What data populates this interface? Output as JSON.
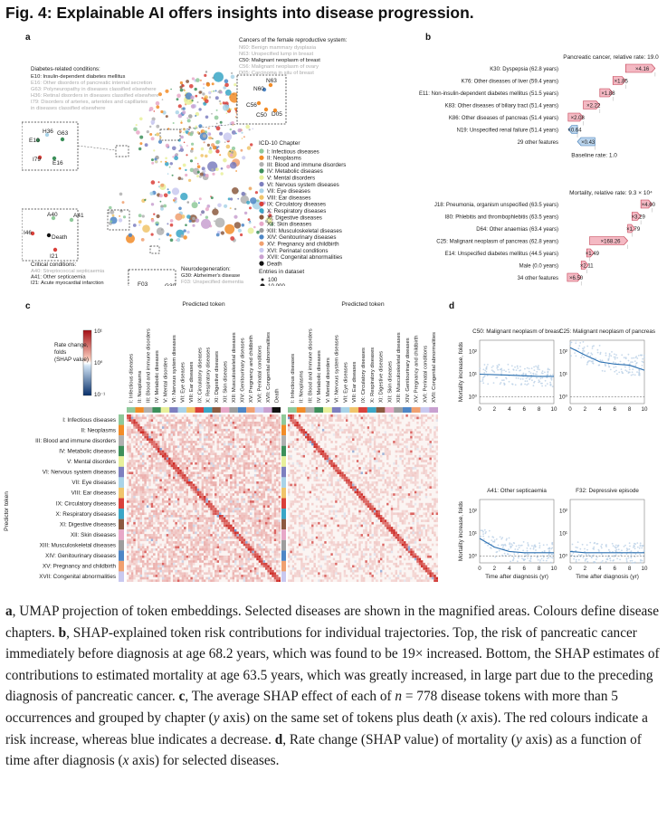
{
  "figure_title": "Fig. 4: Explainable AI offers insights into disease progression.",
  "panel_labels": {
    "a": "a",
    "b": "b",
    "c": "c",
    "d": "d"
  },
  "panel_a": {
    "cancers_box": {
      "heading": "Cancers of the female reproductive system:",
      "lines": [
        {
          "text": "N60: Benign mammary dysplasia",
          "faded": true
        },
        {
          "text": "N63: Unspecified lump in breast",
          "faded": true
        },
        {
          "text": "C50: Malignant neoplasm of breast",
          "faded": false
        },
        {
          "text": "C56: Malignant neoplasm of ovary",
          "faded": true
        },
        {
          "text": "D05: Carcinoma in situ of breast",
          "faded": true
        }
      ],
      "points": [
        "N63",
        "N60",
        "C56",
        "C50",
        "D05"
      ]
    },
    "diabetes_box": {
      "heading": "Diabetes-related conditions:",
      "lines": [
        {
          "text": "E10: Insulin-dependent diabetes mellitus",
          "faded": false
        },
        {
          "text": "E16: Other disorders of pancreatic internal secretion",
          "faded": true
        },
        {
          "text": "G63: Polyneuropathy in diseases classified elsewhere",
          "faded": true
        },
        {
          "text": "H36: Retinal disorders in diseases classified elsewhere",
          "faded": true
        },
        {
          "text": "I79: Disorders of arteries, arterioles and capillaries",
          "faded": true
        },
        {
          "text": "     in diseases classified elsewhere",
          "faded": true
        }
      ],
      "points": [
        "H36",
        "G63",
        "E10",
        "I79",
        "E16"
      ]
    },
    "critical_box": {
      "heading": "Critical conditions:",
      "lines": [
        {
          "text": "A40: Streptococcal septicaemia",
          "faded": true
        },
        {
          "text": "A41: Other septicaemia",
          "faded": false
        },
        {
          "text": "I21: Acute myocardial infarction",
          "faded": false
        },
        {
          "text": "I46: Cardiac arrest",
          "faded": true
        },
        {
          "text": "Death",
          "faded": false
        }
      ],
      "points": [
        "A40",
        "A41",
        "I46",
        "Death",
        "I21"
      ]
    },
    "neuro_box": {
      "heading": "Neurodegeneration:",
      "lines": [
        {
          "text": "G30: Alzheimer's disease",
          "faded": false
        },
        {
          "text": "F03: Unspecified dementia",
          "faded": true
        },
        {
          "text": "G20: Parkinson's disease",
          "faded": true
        },
        {
          "text": "F00: Dementia in Alzheimer's",
          "faded": true
        },
        {
          "text": "disease",
          "faded": true
        }
      ],
      "points": [
        "F03",
        "G30",
        "F00",
        "G20"
      ]
    },
    "legend_title": "ICD-10 Chapter",
    "chapters": [
      {
        "label": "I: Infectious diseases",
        "color": "#8fc99a"
      },
      {
        "label": "II: Neoplasms",
        "color": "#f28c28"
      },
      {
        "label": "III: Blood and immune disorders",
        "color": "#b0b0b0"
      },
      {
        "label": "IV: Metabolic diseases",
        "color": "#3d8f5a"
      },
      {
        "label": "V: Mental disorders",
        "color": "#e8f09a"
      },
      {
        "label": "VI: Nervous system diseases",
        "color": "#7d7fbf"
      },
      {
        "label": "VII: Eye diseases",
        "color": "#a9d3e8"
      },
      {
        "label": "VIII: Ear diseases",
        "color": "#f0c46a"
      },
      {
        "label": "IX: Circulatory diseases",
        "color": "#d9403a"
      },
      {
        "label": "X: Respiratory diseases",
        "color": "#3aa6c6"
      },
      {
        "label": "XI: Digestive diseases",
        "color": "#8c5a40"
      },
      {
        "label": "XII: Skin diseases",
        "color": "#e7a8c8"
      },
      {
        "label": "XIII: Musculoskeletal diseases",
        "color": "#9d9d9d"
      },
      {
        "label": "XIV: Genitourinary diseases",
        "color": "#4e86c6"
      },
      {
        "label": "XV: Pregnancy and childbirth",
        "color": "#f0a070"
      },
      {
        "label": "XVI: Perinatal conditions",
        "color": "#c9c9f0"
      },
      {
        "label": "XVII: Congenital abnormalities",
        "color": "#c8a0d0"
      },
      {
        "label": "Death",
        "color": "#111111"
      }
    ],
    "size_legend": {
      "title": "Entries in dataset",
      "entries": [
        "100",
        "10,000",
        "100,000"
      ]
    }
  },
  "panel_b": {
    "top": {
      "title": "Pancreatic cancer, relative rate: 19.0",
      "baseline": "Baseline rate: 1.0",
      "bars": [
        {
          "label": "K30: Dyspepsia (62.8 years)",
          "value": "×4.16",
          "fold": 4.16
        },
        {
          "label": "K76: Other diseases of liver (59.4 years)",
          "value": "×1.85",
          "fold": 1.85
        },
        {
          "label": "E11: Non-insulin-dependent diabetes mellitus (51.5 years)",
          "value": "×1.88",
          "fold": 1.88
        },
        {
          "label": "K83: Other diseases of biliary tract (51.4 years)",
          "value": "×2.22",
          "fold": 2.22
        },
        {
          "label": "K86: Other diseases of pancreas (51.4 years)",
          "value": "×2.08",
          "fold": 2.08
        },
        {
          "label": "N19: Unspecified renal failure (51.4 years)",
          "value": "×0.64",
          "fold": 0.64
        },
        {
          "label": "29 other features",
          "value": "×0.43",
          "fold": 0.43
        }
      ]
    },
    "bottom": {
      "title": "Mortality, relative rate: 9.3 × 10⁴",
      "baseline": "Baseline rate: 1.0",
      "bars": [
        {
          "label": "J18: Pneumonia, organism unspecified (63.5 years)",
          "value": "×4.60",
          "fold": 4.6
        },
        {
          "label": "I80: Phlebitis and thrombophlebitis (63.5 years)",
          "value": "×3.29",
          "fold": 3.29
        },
        {
          "label": "D64: Other anaemias (63.4 years)",
          "value": "×1.79",
          "fold": 1.79
        },
        {
          "label": "C25: Malignant neoplasm of pancreas (62.8 years)",
          "value": "×168.26",
          "fold": 168.26
        },
        {
          "label": "E14: Unspecified diabetes mellitus (44.5 years)",
          "value": "×1.49",
          "fold": 1.49
        },
        {
          "label": "Male (0.0 years)",
          "value": "×2.11",
          "fold": 2.11
        },
        {
          "label": "34 other features",
          "value": "×6.50",
          "fold": 6.5
        }
      ]
    }
  },
  "panel_c": {
    "left_title": "Predicted token",
    "right_title": "Predicted token",
    "x_tokens": [
      "I: Infectious diseases",
      "II: Neoplasms",
      "III: Blood and immune disorders",
      "IV: Metabolic diseases",
      "V: Mental disorders",
      "VI: Nervous system diseases",
      "VII: Eye diseases",
      "VIII: Ear diseases",
      "IX: Circulatory diseases",
      "X: Respiratory diseases",
      "XI: Digestive diseases",
      "XII: Skin diseases",
      "XIII: Musculoskeletal diseases",
      "XIV: Genitourinary diseases",
      "XV: Pregnancy and childbirth",
      "XVI: Perinatal conditions",
      "XVII: Congenital abnormalities",
      "Death"
    ],
    "x_tokens_right": [
      "I: Infectious diseases",
      "II: Neoplasms",
      "III: Blood and immune disorders",
      "IV: Metabolic diseases",
      "V: Mental disorders",
      "VI: Nervous system diseases",
      "VII: Eye diseases",
      "VIII: Ear diseases",
      "IX: Circulatory diseases",
      "X: Respiratory diseases",
      "XI: Digestive diseases",
      "XII: Skin diseases",
      "XIII: Musculoskeletal diseases",
      "XIV: Genitourinary diseases",
      "XV: Pregnancy and childbirth",
      "XVI: Perinatal conditions",
      "XVII: Congenital abnormalities"
    ],
    "y_tokens": [
      "I: Infectious diseases",
      "II: Neoplasms",
      "III: Blood and immune disorders",
      "IV: Metabolic diseases",
      "V: Mental disorders",
      "VI: Nervous system diseases",
      "VII: Eye diseases",
      "VIII: Ear diseases",
      "IX: Circulatory diseases",
      "X: Respiratory diseases",
      "XI: Digestive diseases",
      "XII: Skin diseases",
      "XIII: Musculoskeletal diseases",
      "XIV: Genitourinary diseases",
      "XV: Pregnancy and childbirth",
      "XVII: Congenital abnormalities"
    ],
    "y_axis_label": "Predictor token",
    "colorbar": {
      "title_lines": [
        "Rate change,",
        "folds",
        "(SHAP value)"
      ],
      "ticks": [
        "10¹",
        "10⁰",
        "10⁻¹"
      ]
    }
  },
  "panel_d": {
    "y_label": "Mortality increase, folds",
    "x_label": "Time after diagnosis (yr)",
    "x_ticks": [
      "0",
      "2",
      "4",
      "6",
      "8",
      "10"
    ],
    "y_ticks": [
      "10²",
      "10¹",
      "10⁰"
    ],
    "plots": [
      {
        "title": "C50: Malignant neoplasm of breast",
        "trend": [
          [
            0,
            10
          ],
          [
            2,
            9.5
          ],
          [
            4,
            9
          ],
          [
            6,
            8.5
          ],
          [
            8,
            8
          ],
          [
            10,
            8
          ]
        ]
      },
      {
        "title": "C25: Malignant neoplasm of pancreas",
        "trend": [
          [
            0,
            150
          ],
          [
            2,
            70
          ],
          [
            4,
            35
          ],
          [
            6,
            28
          ],
          [
            8,
            25
          ],
          [
            10,
            15
          ]
        ]
      },
      {
        "title": "A41: Other septicaemia",
        "trend": [
          [
            0,
            6
          ],
          [
            2,
            2.5
          ],
          [
            4,
            1.6
          ],
          [
            6,
            1.4
          ],
          [
            8,
            1.4
          ],
          [
            10,
            1.4
          ]
        ]
      },
      {
        "title": "F32: Depressive episode",
        "trend": [
          [
            0,
            1.6
          ],
          [
            2,
            1.4
          ],
          [
            4,
            1.4
          ],
          [
            6,
            1.4
          ],
          [
            8,
            1.4
          ],
          [
            10,
            1.4
          ]
        ]
      }
    ]
  },
  "caption": {
    "a_label": "a",
    "a_text": ", UMAP projection of token embeddings. Selected diseases are shown in the magnified areas. Colours define disease chapters. ",
    "b_label": "b",
    "b_text": ", SHAP-explained token risk contributions for individual trajectories. Top, the risk of pancreatic cancer immediately before diagnosis at age 68.2 years, which was found to be 19× increased. Bottom, the SHAP estimates of contributions to estimated mortality at age 63.5 years, which was greatly increased, in large part due to the preceding diagnosis of pancreatic cancer. ",
    "c_label": "c",
    "c_text_1": ", The average SHAP effect of each of ",
    "c_n": "n",
    "c_text_2": " = 778 disease tokens with more than 5 occurrences and grouped by chapter (",
    "c_y": "y",
    "c_text_3": " axis) on the same set of tokens plus death (",
    "c_x": "x",
    "c_text_4": " axis). The red colours indicate a risk increase, whereas blue indicates a decrease. ",
    "d_label": "d",
    "d_text_1": ", Rate change (SHAP value) of mortality (",
    "d_y": "y",
    "d_text_2": " axis) as a function of time after diagnosis (",
    "d_x": "x",
    "d_text_3": " axis) for selected diseases."
  }
}
